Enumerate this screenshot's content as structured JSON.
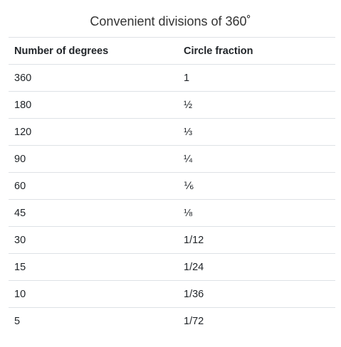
{
  "caption": "Convenient divisions of 360˚",
  "table": {
    "headers": [
      "Number of degrees",
      "Circle fraction"
    ],
    "rows": [
      [
        "360",
        "1"
      ],
      [
        "180",
        "½"
      ],
      [
        "120",
        "⅓"
      ],
      [
        "90",
        "¼"
      ],
      [
        "60",
        "⅙"
      ],
      [
        "45",
        "⅛"
      ],
      [
        "30",
        "1/12"
      ],
      [
        "15",
        "1/24"
      ],
      [
        "10",
        "1/36"
      ],
      [
        "5",
        "1/72"
      ]
    ]
  }
}
